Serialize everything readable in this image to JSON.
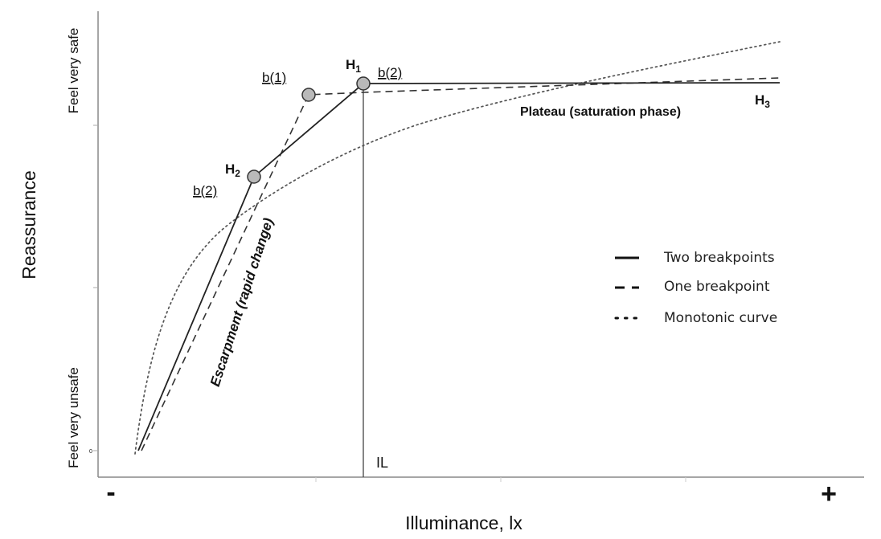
{
  "chart_data": {
    "type": "line",
    "title": "",
    "xlabel": "Illuminance, lx",
    "ylabel": "Reassurance",
    "x_ends": {
      "low": "-",
      "high": "+"
    },
    "y_ticks": {
      "top": "Feel very safe",
      "bottom": "Feel very unsafe",
      "zero": "0"
    },
    "series": [
      {
        "name": "Two breakpoints",
        "style": "solid"
      },
      {
        "name": "One breakpoint",
        "style": "dashed"
      },
      {
        "name": "Monotonic curve",
        "style": "dotted"
      }
    ],
    "points": {
      "H1": "H1",
      "H2": "H2",
      "H3": "H3",
      "b1": "b(1)",
      "b2_upper": "b(2)",
      "b2_lower": "b(2)"
    },
    "threshold_label": "IL",
    "regions": {
      "plateau": "Plateau (saturation phase)",
      "escarpment": "Escarpment (rapid change)"
    },
    "legend_position": "right",
    "grid": false
  }
}
